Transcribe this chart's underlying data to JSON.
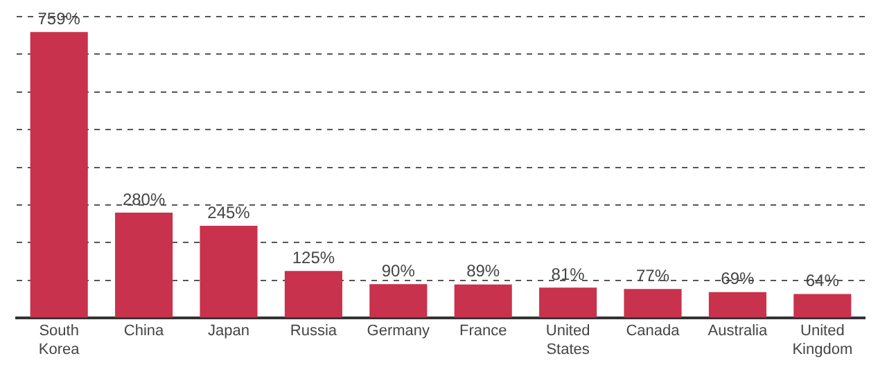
{
  "chart_data": {
    "type": "bar",
    "categories": [
      "South Korea",
      "China",
      "Japan",
      "Russia",
      "Germany",
      "France",
      "United States",
      "Canada",
      "Australia",
      "United Kingdom"
    ],
    "values": [
      759,
      280,
      245,
      125,
      90,
      89,
      81,
      77,
      69,
      64
    ],
    "value_labels": [
      "759%",
      "280%",
      "245%",
      "125%",
      "90%",
      "89%",
      "81%",
      "77%",
      "69%",
      "64%"
    ],
    "color": "#c8324c",
    "ylim": [
      0,
      800
    ],
    "yticks": [
      {
        "value": 0,
        "label": null
      },
      {
        "value": 100,
        "label": null
      },
      {
        "value": 200,
        "label": null
      },
      {
        "value": 300,
        "label": null
      },
      {
        "value": 400,
        "label": null
      },
      {
        "value": 500,
        "label": null
      },
      {
        "value": 600,
        "label": null
      },
      {
        "value": 700,
        "label": null
      },
      {
        "value": 800,
        "label": null
      }
    ],
    "grid": "y",
    "tick_labels": "x",
    "legend": false
  }
}
